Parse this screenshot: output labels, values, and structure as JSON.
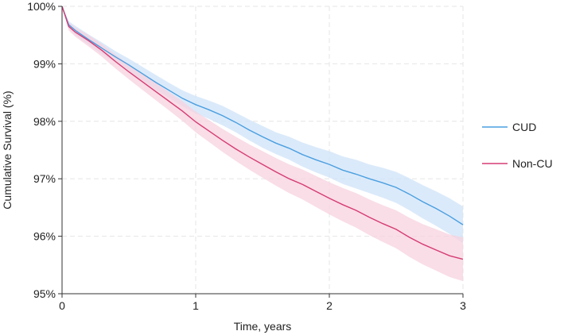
{
  "chart_data": {
    "type": "line",
    "title": "",
    "xlabel": "Time, years",
    "ylabel": "Cumulative Survival (%)",
    "xlim": [
      0,
      3
    ],
    "ylim": [
      95,
      100
    ],
    "x_ticks": [
      0,
      1,
      2,
      3
    ],
    "x_tick_labels": [
      "0",
      "1",
      "2",
      "3"
    ],
    "y_ticks": [
      95,
      96,
      97,
      98,
      99,
      100
    ],
    "y_tick_labels": [
      "95%",
      "96%",
      "97%",
      "98%",
      "99%",
      "100%"
    ],
    "grid": true,
    "legend_position": "right",
    "confidence_bands": true,
    "series": [
      {
        "name": "CUD",
        "color": "#4a9fe0",
        "band_color": "#cfe3f8",
        "x": [
          0,
          0.05,
          0.1,
          0.2,
          0.3,
          0.4,
          0.5,
          0.6,
          0.7,
          0.8,
          0.9,
          1.0,
          1.1,
          1.2,
          1.3,
          1.4,
          1.5,
          1.6,
          1.7,
          1.8,
          1.9,
          2.0,
          2.1,
          2.2,
          2.3,
          2.4,
          2.5,
          2.6,
          2.7,
          2.8,
          2.9,
          3.0
        ],
        "y": [
          100,
          99.68,
          99.58,
          99.42,
          99.27,
          99.12,
          98.98,
          98.83,
          98.68,
          98.54,
          98.4,
          98.29,
          98.2,
          98.1,
          97.98,
          97.85,
          97.73,
          97.62,
          97.53,
          97.42,
          97.33,
          97.25,
          97.15,
          97.08,
          97.0,
          96.93,
          96.85,
          96.73,
          96.6,
          96.48,
          96.35,
          96.2
        ],
        "lower": [
          100,
          99.62,
          99.5,
          99.33,
          99.17,
          99.02,
          98.87,
          98.71,
          98.55,
          98.41,
          98.26,
          98.14,
          98.04,
          97.93,
          97.81,
          97.67,
          97.54,
          97.43,
          97.33,
          97.21,
          97.11,
          97.02,
          96.91,
          96.83,
          96.75,
          96.67,
          96.58,
          96.45,
          96.31,
          96.18,
          96.04,
          95.88
        ],
        "upper": [
          100,
          99.74,
          99.66,
          99.51,
          99.37,
          99.22,
          99.09,
          98.95,
          98.81,
          98.67,
          98.54,
          98.44,
          98.36,
          98.27,
          98.15,
          98.03,
          97.92,
          97.81,
          97.73,
          97.63,
          97.55,
          97.48,
          97.39,
          97.33,
          97.25,
          97.19,
          97.12,
          97.01,
          96.89,
          96.78,
          96.66,
          96.52
        ]
      },
      {
        "name": "Non-CU",
        "color": "#d63c73",
        "band_color": "#f7d1df",
        "x": [
          0,
          0.05,
          0.1,
          0.2,
          0.3,
          0.4,
          0.5,
          0.6,
          0.7,
          0.8,
          0.9,
          1.0,
          1.1,
          1.2,
          1.3,
          1.4,
          1.5,
          1.6,
          1.7,
          1.8,
          1.9,
          2.0,
          2.1,
          2.2,
          2.3,
          2.4,
          2.5,
          2.6,
          2.7,
          2.8,
          2.9,
          3.0
        ],
        "y": [
          100,
          99.65,
          99.55,
          99.4,
          99.23,
          99.04,
          98.86,
          98.69,
          98.52,
          98.35,
          98.18,
          97.99,
          97.83,
          97.67,
          97.52,
          97.38,
          97.25,
          97.12,
          97.0,
          96.9,
          96.78,
          96.66,
          96.55,
          96.45,
          96.33,
          96.22,
          96.12,
          95.98,
          95.86,
          95.76,
          95.66,
          95.6
        ],
        "lower": [
          100,
          99.58,
          99.47,
          99.3,
          99.12,
          98.92,
          98.73,
          98.55,
          98.37,
          98.19,
          98.01,
          97.81,
          97.64,
          97.47,
          97.31,
          97.16,
          97.02,
          96.88,
          96.75,
          96.64,
          96.51,
          96.38,
          96.26,
          96.15,
          96.02,
          95.9,
          95.79,
          95.64,
          95.51,
          95.4,
          95.29,
          95.22
        ],
        "upper": [
          100,
          99.72,
          99.63,
          99.5,
          99.34,
          99.16,
          98.99,
          98.83,
          98.67,
          98.51,
          98.35,
          98.17,
          98.02,
          97.87,
          97.73,
          97.6,
          97.48,
          97.36,
          97.25,
          97.16,
          97.05,
          96.94,
          96.84,
          96.75,
          96.64,
          96.54,
          96.45,
          96.32,
          96.21,
          96.12,
          96.03,
          95.98
        ]
      }
    ]
  }
}
